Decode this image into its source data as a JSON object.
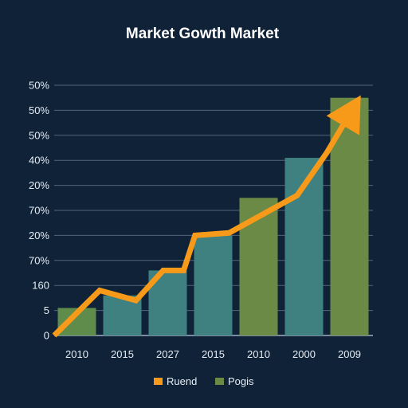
{
  "chart_data": {
    "type": "bar",
    "title": "Market Gowth Market",
    "categories": [
      "2010",
      "2015",
      "2027",
      "2015",
      "2010",
      "2000",
      "2009"
    ],
    "y_tick_labels": [
      "0",
      "5",
      "160",
      "70%",
      "20%",
      "70%",
      "20%",
      "40%",
      "50%",
      "50%",
      "50%"
    ],
    "ylim": [
      0,
      10
    ],
    "grid": true,
    "legend_position": "bottom",
    "series": [
      {
        "name": "Pogis",
        "kind": "bar",
        "values": [
          1.1,
          1.6,
          2.6,
          4.0,
          5.5,
          7.1,
          9.5
        ],
        "colors": [
          "#5f8b4b",
          "#3f8080",
          "#3f8080",
          "#3f8080",
          "#6b8a46",
          "#3f8080",
          "#6b8a46"
        ]
      },
      {
        "name": "Ruend",
        "kind": "line",
        "color": "#f79a19",
        "points": [
          {
            "x": 0.0,
            "y": 0.0
          },
          {
            "x": 1.0,
            "y": 1.8
          },
          {
            "x": 1.8,
            "y": 1.4
          },
          {
            "x": 2.4,
            "y": 2.6
          },
          {
            "x": 2.85,
            "y": 2.6
          },
          {
            "x": 3.1,
            "y": 4.0
          },
          {
            "x": 3.85,
            "y": 4.1
          },
          {
            "x": 5.35,
            "y": 5.6
          },
          {
            "x": 6.0,
            "y": 7.3
          },
          {
            "x": 6.75,
            "y": 9.6
          }
        ]
      }
    ]
  }
}
